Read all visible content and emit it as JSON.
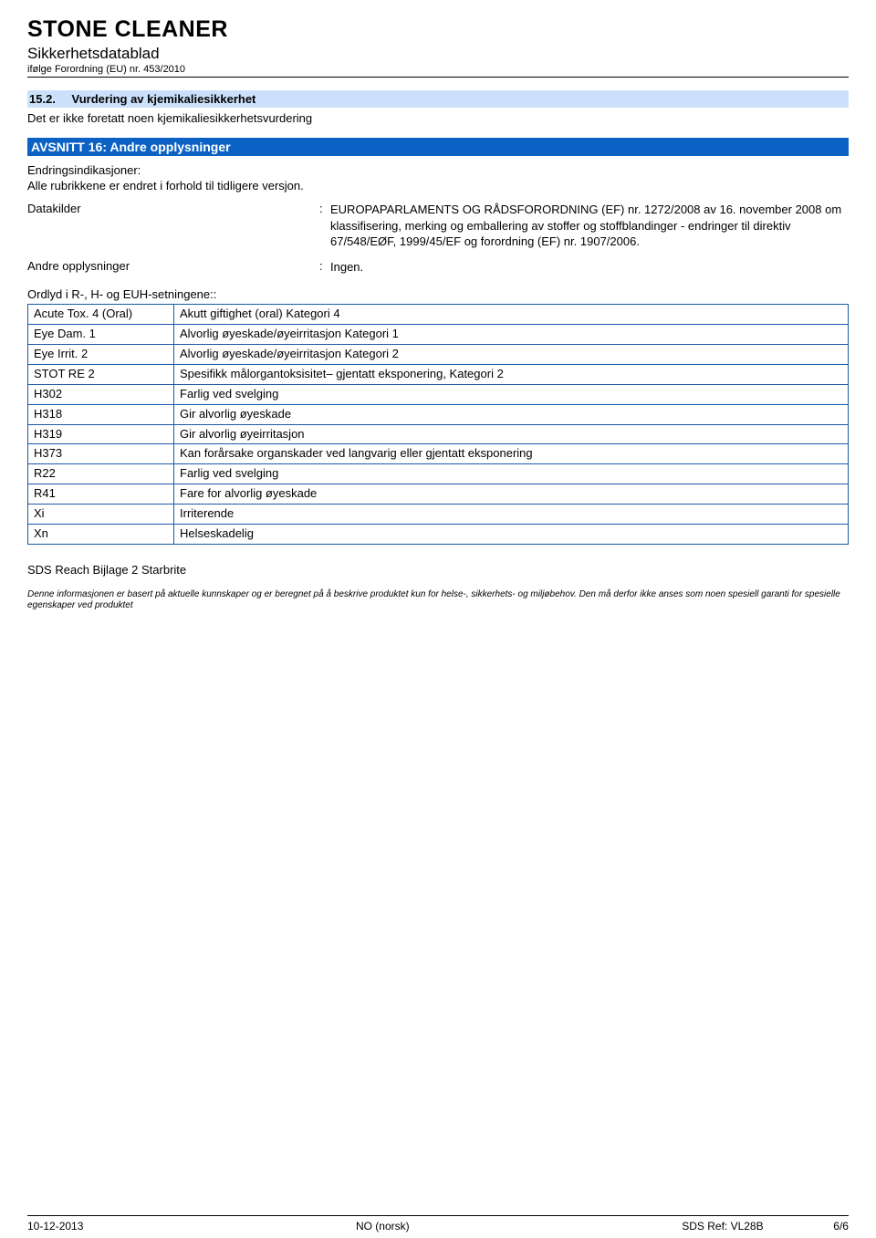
{
  "header": {
    "title": "STONE CLEANER",
    "subtitle": "Sikkerhetsdatablad",
    "regulation": "ifølge Forordning (EU) nr. 453/2010"
  },
  "section_15_2": {
    "number": "15.2.",
    "title": "Vurdering av kjemikaliesikkerhet",
    "body": "Det er ikke foretatt noen kjemikaliesikkerhetsvurdering"
  },
  "section_16": {
    "title": "AVSNITT 16: Andre opplysninger",
    "change_heading": "Endringsindikasjoner:",
    "change_text": "Alle rubrikkene er endret i forhold til tidligere versjon.",
    "datakilder_label": "Datakilder",
    "datakilder_value": "EUROPAPARLAMENTS OG RÅDSFORORDNING (EF) nr. 1272/2008 av 16. november 2008 om klassifisering, merking og emballering av stoffer og stoffblandinger - endringer til direktiv 67/548/EØF, 1999/45/EF og forordning (EF) nr. 1907/2006.",
    "andre_label": "Andre opplysninger",
    "andre_value": "Ingen.",
    "phrases_caption": "Ordlyd i R-, H- og EUH-setningene::",
    "rows": [
      {
        "code": "Acute Tox. 4 (Oral)",
        "text": "Akutt giftighet (oral) Kategori 4"
      },
      {
        "code": "Eye Dam. 1",
        "text": "Alvorlig øyeskade/øyeirritasjon Kategori 1"
      },
      {
        "code": "Eye Irrit. 2",
        "text": "Alvorlig øyeskade/øyeirritasjon Kategori 2"
      },
      {
        "code": "STOT RE 2",
        "text": "Spesifikk målorgantoksisitet– gjentatt eksponering, Kategori 2"
      },
      {
        "code": "H302",
        "text": "Farlig ved svelging"
      },
      {
        "code": "H318",
        "text": "Gir alvorlig øyeskade"
      },
      {
        "code": "H319",
        "text": "Gir alvorlig øyeirritasjon"
      },
      {
        "code": "H373",
        "text": "Kan forårsake organskader ved langvarig eller gjentatt eksponering"
      },
      {
        "code": "R22",
        "text": "Farlig ved svelging"
      },
      {
        "code": "R41",
        "text": "Fare for alvorlig øyeskade"
      },
      {
        "code": "Xi",
        "text": "Irriterende"
      },
      {
        "code": "Xn",
        "text": "Helseskadelig"
      }
    ]
  },
  "sds_ref_left": "SDS Reach Bijlage 2 Starbrite",
  "disclaimer": "Denne informasjonen er basert på aktuelle kunnskaper og er beregnet på å beskrive produktet kun for helse-, sikkerhets- og miljøbehov. Den må derfor ikke anses som noen spesiell garanti for spesielle egenskaper ved produktet",
  "footer": {
    "date": "10-12-2013",
    "lang": "NO (norsk)",
    "ref": "SDS Ref: VL28B",
    "page": "6/6"
  }
}
